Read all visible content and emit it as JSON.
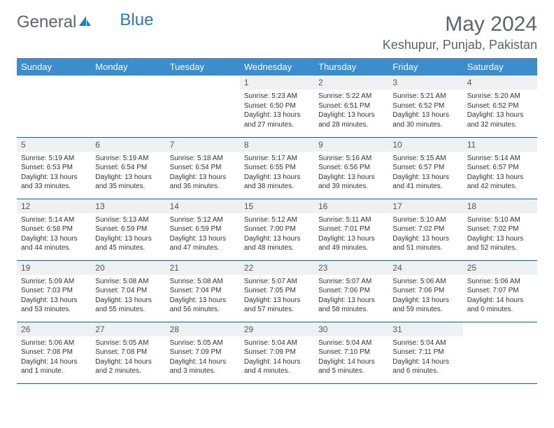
{
  "brand": {
    "part1": "General",
    "part2": "Blue"
  },
  "title": "May 2024",
  "location": "Keshupur, Punjab, Pakistan",
  "colors": {
    "header_bg": "#3c8dcc",
    "header_text": "#ffffff",
    "daynum_bg": "#eef0f2",
    "row_border": "#2a5a8a",
    "title_color": "#5a6570",
    "brand_accent": "#2a7ab8"
  },
  "weekdays": [
    "Sunday",
    "Monday",
    "Tuesday",
    "Wednesday",
    "Thursday",
    "Friday",
    "Saturday"
  ],
  "weeks": [
    [
      {
        "n": "",
        "l1": "",
        "l2": "",
        "l3": ""
      },
      {
        "n": "",
        "l1": "",
        "l2": "",
        "l3": ""
      },
      {
        "n": "",
        "l1": "",
        "l2": "",
        "l3": ""
      },
      {
        "n": "1",
        "l1": "Sunrise: 5:23 AM",
        "l2": "Sunset: 6:50 PM",
        "l3": "Daylight: 13 hours and 27 minutes."
      },
      {
        "n": "2",
        "l1": "Sunrise: 5:22 AM",
        "l2": "Sunset: 6:51 PM",
        "l3": "Daylight: 13 hours and 28 minutes."
      },
      {
        "n": "3",
        "l1": "Sunrise: 5:21 AM",
        "l2": "Sunset: 6:52 PM",
        "l3": "Daylight: 13 hours and 30 minutes."
      },
      {
        "n": "4",
        "l1": "Sunrise: 5:20 AM",
        "l2": "Sunset: 6:52 PM",
        "l3": "Daylight: 13 hours and 32 minutes."
      }
    ],
    [
      {
        "n": "5",
        "l1": "Sunrise: 5:19 AM",
        "l2": "Sunset: 6:53 PM",
        "l3": "Daylight: 13 hours and 33 minutes."
      },
      {
        "n": "6",
        "l1": "Sunrise: 5:19 AM",
        "l2": "Sunset: 6:54 PM",
        "l3": "Daylight: 13 hours and 35 minutes."
      },
      {
        "n": "7",
        "l1": "Sunrise: 5:18 AM",
        "l2": "Sunset: 6:54 PM",
        "l3": "Daylight: 13 hours and 36 minutes."
      },
      {
        "n": "8",
        "l1": "Sunrise: 5:17 AM",
        "l2": "Sunset: 6:55 PM",
        "l3": "Daylight: 13 hours and 38 minutes."
      },
      {
        "n": "9",
        "l1": "Sunrise: 5:16 AM",
        "l2": "Sunset: 6:56 PM",
        "l3": "Daylight: 13 hours and 39 minutes."
      },
      {
        "n": "10",
        "l1": "Sunrise: 5:15 AM",
        "l2": "Sunset: 6:57 PM",
        "l3": "Daylight: 13 hours and 41 minutes."
      },
      {
        "n": "11",
        "l1": "Sunrise: 5:14 AM",
        "l2": "Sunset: 6:57 PM",
        "l3": "Daylight: 13 hours and 42 minutes."
      }
    ],
    [
      {
        "n": "12",
        "l1": "Sunrise: 5:14 AM",
        "l2": "Sunset: 6:58 PM",
        "l3": "Daylight: 13 hours and 44 minutes."
      },
      {
        "n": "13",
        "l1": "Sunrise: 5:13 AM",
        "l2": "Sunset: 6:59 PM",
        "l3": "Daylight: 13 hours and 45 minutes."
      },
      {
        "n": "14",
        "l1": "Sunrise: 5:12 AM",
        "l2": "Sunset: 6:59 PM",
        "l3": "Daylight: 13 hours and 47 minutes."
      },
      {
        "n": "15",
        "l1": "Sunrise: 5:12 AM",
        "l2": "Sunset: 7:00 PM",
        "l3": "Daylight: 13 hours and 48 minutes."
      },
      {
        "n": "16",
        "l1": "Sunrise: 5:11 AM",
        "l2": "Sunset: 7:01 PM",
        "l3": "Daylight: 13 hours and 49 minutes."
      },
      {
        "n": "17",
        "l1": "Sunrise: 5:10 AM",
        "l2": "Sunset: 7:02 PM",
        "l3": "Daylight: 13 hours and 51 minutes."
      },
      {
        "n": "18",
        "l1": "Sunrise: 5:10 AM",
        "l2": "Sunset: 7:02 PM",
        "l3": "Daylight: 13 hours and 52 minutes."
      }
    ],
    [
      {
        "n": "19",
        "l1": "Sunrise: 5:09 AM",
        "l2": "Sunset: 7:03 PM",
        "l3": "Daylight: 13 hours and 53 minutes."
      },
      {
        "n": "20",
        "l1": "Sunrise: 5:08 AM",
        "l2": "Sunset: 7:04 PM",
        "l3": "Daylight: 13 hours and 55 minutes."
      },
      {
        "n": "21",
        "l1": "Sunrise: 5:08 AM",
        "l2": "Sunset: 7:04 PM",
        "l3": "Daylight: 13 hours and 56 minutes."
      },
      {
        "n": "22",
        "l1": "Sunrise: 5:07 AM",
        "l2": "Sunset: 7:05 PM",
        "l3": "Daylight: 13 hours and 57 minutes."
      },
      {
        "n": "23",
        "l1": "Sunrise: 5:07 AM",
        "l2": "Sunset: 7:06 PM",
        "l3": "Daylight: 13 hours and 58 minutes."
      },
      {
        "n": "24",
        "l1": "Sunrise: 5:06 AM",
        "l2": "Sunset: 7:06 PM",
        "l3": "Daylight: 13 hours and 59 minutes."
      },
      {
        "n": "25",
        "l1": "Sunrise: 5:06 AM",
        "l2": "Sunset: 7:07 PM",
        "l3": "Daylight: 14 hours and 0 minutes."
      }
    ],
    [
      {
        "n": "26",
        "l1": "Sunrise: 5:06 AM",
        "l2": "Sunset: 7:08 PM",
        "l3": "Daylight: 14 hours and 1 minute."
      },
      {
        "n": "27",
        "l1": "Sunrise: 5:05 AM",
        "l2": "Sunset: 7:08 PM",
        "l3": "Daylight: 14 hours and 2 minutes."
      },
      {
        "n": "28",
        "l1": "Sunrise: 5:05 AM",
        "l2": "Sunset: 7:09 PM",
        "l3": "Daylight: 14 hours and 3 minutes."
      },
      {
        "n": "29",
        "l1": "Sunrise: 5:04 AM",
        "l2": "Sunset: 7:09 PM",
        "l3": "Daylight: 14 hours and 4 minutes."
      },
      {
        "n": "30",
        "l1": "Sunrise: 5:04 AM",
        "l2": "Sunset: 7:10 PM",
        "l3": "Daylight: 14 hours and 5 minutes."
      },
      {
        "n": "31",
        "l1": "Sunrise: 5:04 AM",
        "l2": "Sunset: 7:11 PM",
        "l3": "Daylight: 14 hours and 6 minutes."
      },
      {
        "n": "",
        "l1": "",
        "l2": "",
        "l3": ""
      }
    ]
  ]
}
